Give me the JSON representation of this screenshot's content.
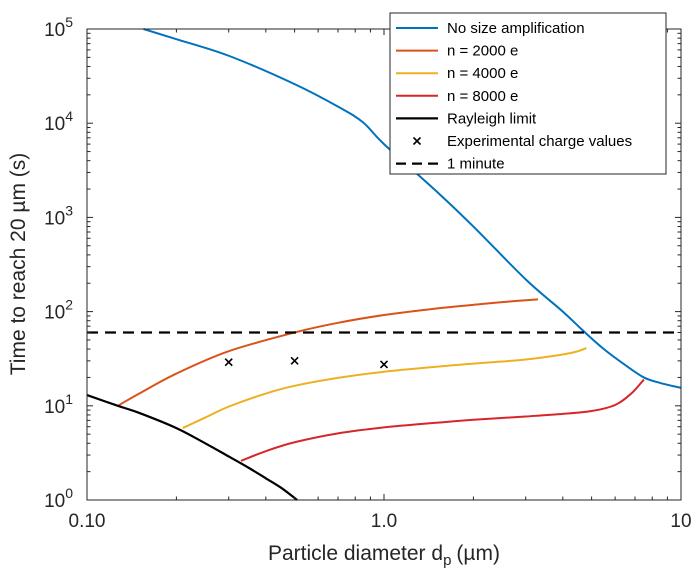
{
  "chart_data": {
    "type": "line",
    "xlabel": "Particle diameter d",
    "xlabel_subscript": "p",
    "xlabel_unit": "(µm)",
    "ylabel": "Time to reach 20 µm (s)",
    "x_scale": "log",
    "y_scale": "log",
    "xlim": [
      0.1,
      10
    ],
    "ylim": [
      1,
      100000
    ],
    "grid": false,
    "legend_position": "top-right",
    "x_ticks": [
      {
        "value": 0.1,
        "label": "0.10"
      },
      {
        "value": 1,
        "label": "1.0"
      },
      {
        "value": 10,
        "label": "10"
      }
    ],
    "y_ticks": [
      {
        "value": 1,
        "base": "10",
        "exp": "0"
      },
      {
        "value": 10,
        "base": "10",
        "exp": "1"
      },
      {
        "value": 100,
        "base": "10",
        "exp": "2"
      },
      {
        "value": 1000,
        "base": "10",
        "exp": "3"
      },
      {
        "value": 10000,
        "base": "10",
        "exp": "4"
      },
      {
        "value": 100000,
        "base": "10",
        "exp": "5"
      }
    ],
    "series": [
      {
        "name": "No size amplification",
        "color": "#0072BD",
        "style": "solid",
        "points": [
          [
            0.155,
            100000
          ],
          [
            0.2,
            78000
          ],
          [
            0.3,
            52000
          ],
          [
            0.5,
            26000
          ],
          [
            0.7,
            15000
          ],
          [
            0.85,
            10200
          ],
          [
            1.0,
            6000
          ],
          [
            1.5,
            1900
          ],
          [
            2.0,
            800
          ],
          [
            3.0,
            220
          ],
          [
            4.0,
            100
          ],
          [
            4.7,
            62
          ],
          [
            5.5,
            40
          ],
          [
            6.5,
            27
          ],
          [
            7.5,
            20
          ],
          [
            8.5,
            17.5
          ],
          [
            10.0,
            15.5
          ]
        ]
      },
      {
        "name": "n = 2000 e",
        "color": "#D95319",
        "style": "solid",
        "points": [
          [
            0.127,
            10
          ],
          [
            0.15,
            13.5
          ],
          [
            0.2,
            22
          ],
          [
            0.3,
            38
          ],
          [
            0.5,
            60
          ],
          [
            0.7,
            76
          ],
          [
            1.0,
            92
          ],
          [
            1.5,
            108
          ],
          [
            2.0,
            118
          ],
          [
            2.5,
            126
          ],
          [
            3.3,
            135
          ]
        ]
      },
      {
        "name": "n = 4000 e",
        "color": "#EDB120",
        "style": "solid",
        "points": [
          [
            0.21,
            5.8
          ],
          [
            0.25,
            7.5
          ],
          [
            0.3,
            9.8
          ],
          [
            0.4,
            13.5
          ],
          [
            0.5,
            16.3
          ],
          [
            0.7,
            19.8
          ],
          [
            1.0,
            23
          ],
          [
            1.5,
            26
          ],
          [
            2.0,
            28
          ],
          [
            3.0,
            31
          ],
          [
            4.0,
            35
          ],
          [
            4.5,
            38
          ],
          [
            4.8,
            41
          ]
        ]
      },
      {
        "name": "n = 8000 e",
        "color": "#D62728",
        "style": "solid",
        "points": [
          [
            0.33,
            2.6
          ],
          [
            0.4,
            3.3
          ],
          [
            0.5,
            4.1
          ],
          [
            0.7,
            5.1
          ],
          [
            1.0,
            5.9
          ],
          [
            1.5,
            6.6
          ],
          [
            2.0,
            7.1
          ],
          [
            3.0,
            7.7
          ],
          [
            4.0,
            8.2
          ],
          [
            5.0,
            8.8
          ],
          [
            6.0,
            10.2
          ],
          [
            6.8,
            13.5
          ],
          [
            7.5,
            19
          ]
        ]
      },
      {
        "name": "Rayleigh limit",
        "color": "#000000",
        "style": "solid",
        "points": [
          [
            0.1,
            13
          ],
          [
            0.127,
            10
          ],
          [
            0.15,
            8.4
          ],
          [
            0.2,
            5.8
          ],
          [
            0.25,
            4.0
          ],
          [
            0.3,
            2.9
          ],
          [
            0.35,
            2.2
          ],
          [
            0.4,
            1.7
          ],
          [
            0.45,
            1.35
          ],
          [
            0.5,
            1.05
          ],
          [
            0.51,
            1.0
          ]
        ]
      },
      {
        "name": "Experimental charge values",
        "color": "#000000",
        "style": "markers",
        "points": [
          [
            0.3,
            29
          ],
          [
            0.5,
            30
          ],
          [
            1.0,
            27.5
          ]
        ]
      },
      {
        "name": "1 minute",
        "color": "#000000",
        "style": "dashed",
        "points": [
          [
            0.1,
            60
          ],
          [
            10.0,
            60
          ]
        ]
      }
    ]
  }
}
